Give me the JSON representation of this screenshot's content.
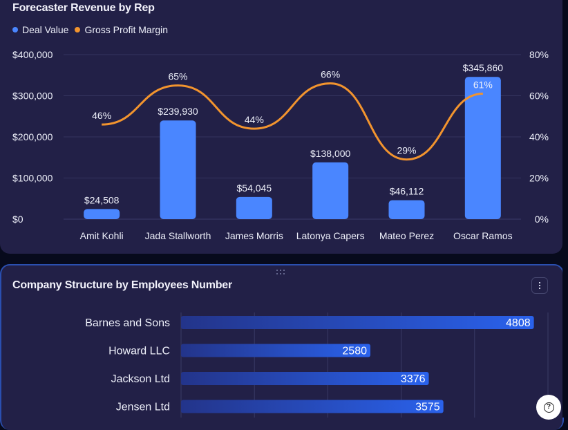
{
  "card1": {
    "title": "Forecaster Revenue by Rep",
    "legend": [
      {
        "label": "Deal Value",
        "color": "#4a86ff"
      },
      {
        "label": "Gross Profit Margin",
        "color": "#f2942e"
      }
    ]
  },
  "card2": {
    "title": "Company Structure by Employees Number",
    "menu_icon": "more-vertical-icon",
    "drag_icon": "drag-handle-icon"
  },
  "help": {
    "icon": "help-circle-icon",
    "glyph": "?"
  },
  "chart_data": [
    {
      "type": "bar",
      "title": "Forecaster Revenue by Rep",
      "categories": [
        "Amit Kohli",
        "Jada Stallworth",
        "James Morris",
        "Latonya Capers",
        "Mateo Perez",
        "Oscar Ramos"
      ],
      "series": [
        {
          "name": "Deal Value",
          "type": "bar",
          "axis": "left",
          "color": "#4a86ff",
          "values": [
            24508,
            239930,
            54045,
            138000,
            46112,
            345860
          ],
          "labels": [
            "$24,508",
            "$239,930",
            "$54,045",
            "$138,000",
            "$46,112",
            "$345,860"
          ]
        },
        {
          "name": "Gross Profit Margin",
          "type": "line",
          "smooth": true,
          "axis": "right",
          "color": "#f2942e",
          "values": [
            46,
            65,
            44,
            66,
            29,
            61
          ],
          "labels": [
            "46%",
            "65%",
            "44%",
            "66%",
            "29%",
            "61%"
          ]
        }
      ],
      "y_left": {
        "range": [
          0,
          400000
        ],
        "ticks": [
          "$0",
          "$100,000",
          "$200,000",
          "$300,000",
          "$400,000"
        ]
      },
      "y_right": {
        "range": [
          0,
          80
        ],
        "ticks": [
          "0%",
          "20%",
          "40%",
          "60%",
          "80%"
        ]
      },
      "grid": true,
      "legend_position": "top-left"
    },
    {
      "type": "bar",
      "orientation": "horizontal",
      "title": "Company Structure by Employees Number",
      "categories": [
        "Barnes and Sons",
        "Howard LLC",
        "Jackson Ltd",
        "Jensen Ltd"
      ],
      "values": [
        4808,
        2580,
        3376,
        3575
      ],
      "labels": [
        "4808",
        "2580",
        "3376",
        "3575"
      ],
      "x_range": [
        0,
        5000
      ],
      "gridlines": [
        0,
        1000,
        2000,
        3000,
        4000,
        5000
      ],
      "grid": true,
      "color_from": "#23348a",
      "color_to": "#2a62ec"
    }
  ]
}
